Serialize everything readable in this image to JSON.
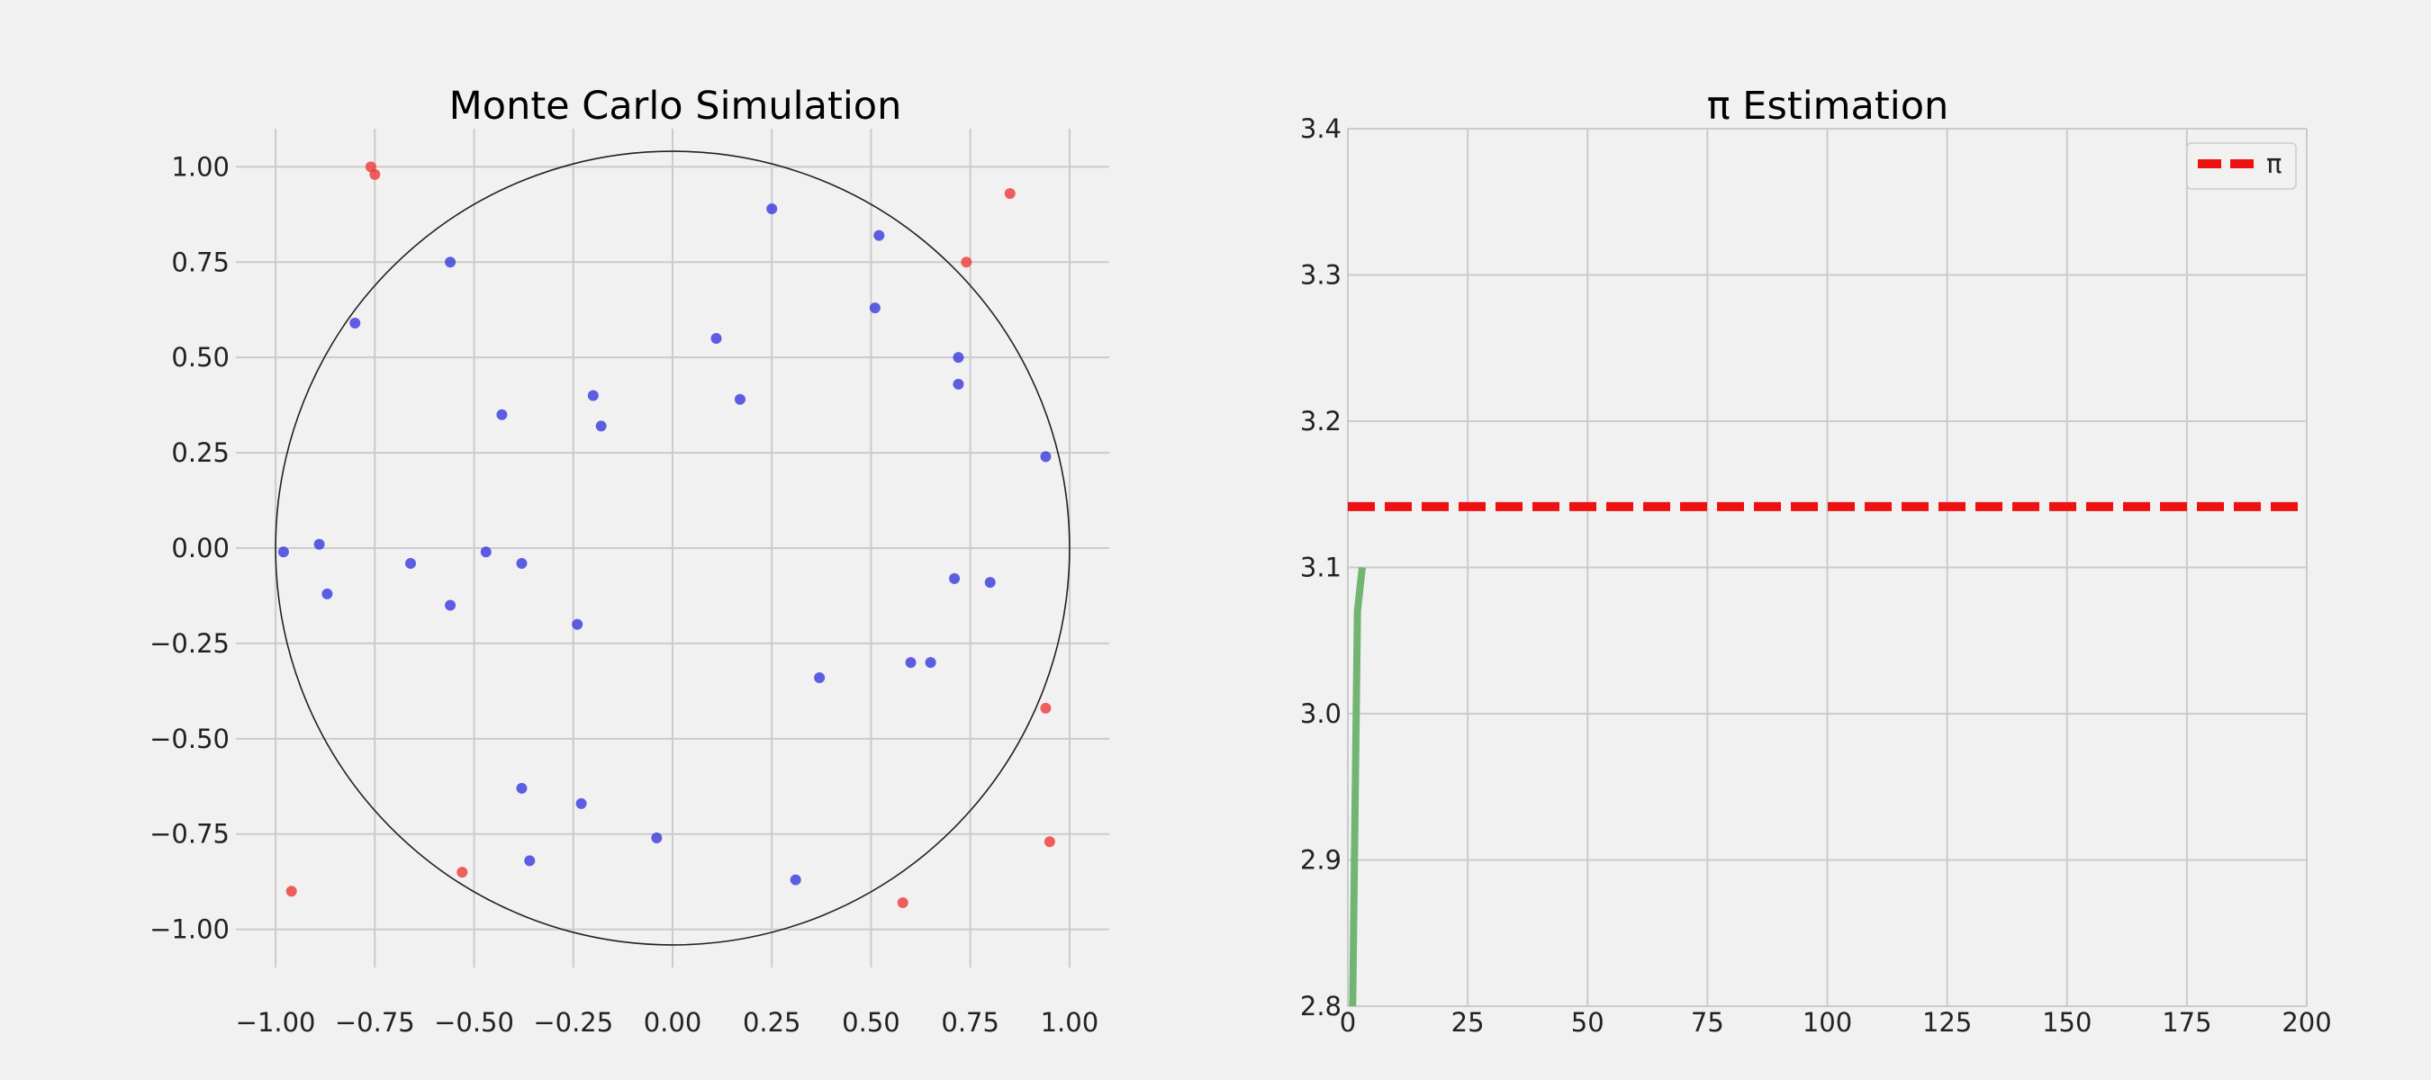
{
  "chart_data": [
    {
      "type": "scatter",
      "title": "Monte Carlo Simulation",
      "xlabel": "",
      "ylabel": "",
      "xlim": [
        -1.1,
        1.1
      ],
      "ylim": [
        -1.1,
        1.1
      ],
      "xticks": [
        -1.0,
        -0.75,
        -0.5,
        -0.25,
        0.0,
        0.25,
        0.5,
        0.75,
        1.0
      ],
      "yticks": [
        -1.0,
        -0.75,
        -0.5,
        -0.25,
        0.0,
        0.25,
        0.5,
        0.75,
        1.0
      ],
      "xtick_labels": [
        "−1.00",
        "−0.75",
        "−0.50",
        "−0.25",
        "0.00",
        "0.25",
        "0.50",
        "0.75",
        "1.00"
      ],
      "ytick_labels": [
        "−1.00",
        "−0.75",
        "−0.50",
        "−0.25",
        "0.00",
        "0.25",
        "0.50",
        "0.75",
        "1.00"
      ],
      "grid": true,
      "circle": {
        "center": [
          0,
          0
        ],
        "radius": 1,
        "color": "#222222"
      },
      "series": [
        {
          "color": "#3333dd",
          "points": [
            [
              0.25,
              0.89
            ],
            [
              0.52,
              0.82
            ],
            [
              -0.56,
              0.75
            ],
            [
              -0.8,
              0.59
            ],
            [
              0.51,
              0.63
            ],
            [
              0.11,
              0.55
            ],
            [
              0.72,
              0.5
            ],
            [
              0.72,
              0.43
            ],
            [
              -0.2,
              0.4
            ],
            [
              0.17,
              0.39
            ],
            [
              -0.43,
              0.35
            ],
            [
              -0.18,
              0.32
            ],
            [
              0.94,
              0.24
            ],
            [
              -0.98,
              -0.01
            ],
            [
              -0.89,
              0.01
            ],
            [
              -0.66,
              -0.04
            ],
            [
              -0.47,
              -0.01
            ],
            [
              -0.38,
              -0.04
            ],
            [
              0.71,
              -0.08
            ],
            [
              0.8,
              -0.09
            ],
            [
              -0.87,
              -0.12
            ],
            [
              -0.56,
              -0.15
            ],
            [
              -0.24,
              -0.2
            ],
            [
              0.6,
              -0.3
            ],
            [
              0.65,
              -0.3
            ],
            [
              0.37,
              -0.34
            ],
            [
              -0.38,
              -0.63
            ],
            [
              -0.23,
              -0.67
            ],
            [
              -0.04,
              -0.76
            ],
            [
              -0.36,
              -0.82
            ],
            [
              0.31,
              -0.87
            ]
          ]
        },
        {
          "color": "#ee3333",
          "points": [
            [
              -0.76,
              1.0
            ],
            [
              -0.75,
              0.98
            ],
            [
              0.85,
              0.93
            ],
            [
              0.74,
              0.75
            ],
            [
              0.94,
              -0.42
            ],
            [
              0.95,
              -0.77
            ],
            [
              -0.96,
              -0.9
            ],
            [
              -0.53,
              -0.85
            ],
            [
              0.58,
              -0.93
            ]
          ]
        }
      ]
    },
    {
      "type": "line",
      "title": "π Estimation",
      "xlabel": "",
      "ylabel": "",
      "xlim": [
        0,
        200
      ],
      "ylim": [
        2.8,
        3.4
      ],
      "xticks": [
        0,
        25,
        50,
        75,
        100,
        125,
        150,
        175,
        200
      ],
      "yticks": [
        2.8,
        2.9,
        3.0,
        3.1,
        3.2,
        3.3,
        3.4
      ],
      "xtick_labels": [
        "0",
        "25",
        "50",
        "75",
        "100",
        "125",
        "150",
        "175",
        "200"
      ],
      "ytick_labels": [
        "2.8",
        "2.9",
        "3.0",
        "3.1",
        "3.2",
        "3.3",
        "3.4"
      ],
      "grid": true,
      "legend_position": "top-right",
      "series": [
        {
          "color": "#72b572",
          "x": [
            1,
            2,
            3
          ],
          "y": [
            2.8,
            3.07,
            3.1
          ]
        }
      ],
      "reference_line": {
        "name": "π",
        "y": 3.14159,
        "color": "#ee1111",
        "style": "dashed"
      }
    }
  ]
}
